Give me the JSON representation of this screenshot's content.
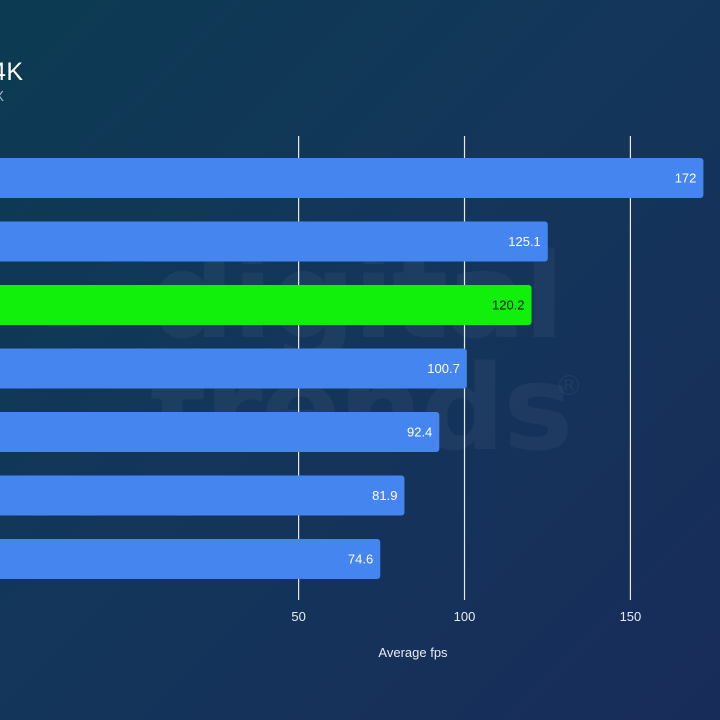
{
  "header": {
    "title": "4K",
    "subtitle": "X"
  },
  "watermark": {
    "line1": "digital",
    "line2": "trends",
    "mark": "®"
  },
  "chart_data": {
    "type": "bar",
    "orientation": "horizontal",
    "title": "4K",
    "xlabel": "Average fps",
    "ylabel": "",
    "xlim": [
      -40,
      177
    ],
    "xticks": [
      50,
      100,
      150
    ],
    "grid": true,
    "categories": [
      "",
      "",
      "",
      "",
      "",
      "",
      ""
    ],
    "values": [
      172,
      125.1,
      120.2,
      100.7,
      92.4,
      81.9,
      74.6
    ],
    "value_labels": [
      "172",
      "125.1",
      "120.2",
      "100.7",
      "92.4",
      "81.9",
      "74.6"
    ],
    "highlight_index": 2,
    "colors": {
      "bar": "#4585f0",
      "highlight": "#11f00b",
      "grid": "#e6ebf2",
      "label_on_bar": "#ffffff",
      "label_on_highlight": "#0a1a0a",
      "axis_text": "#e8edf4"
    }
  }
}
